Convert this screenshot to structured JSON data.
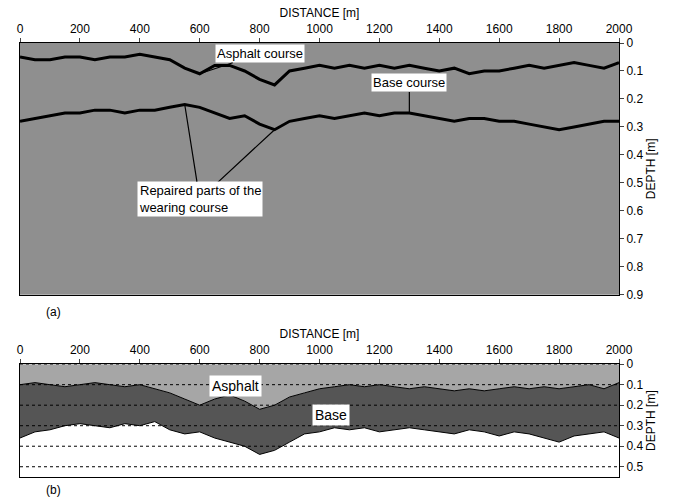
{
  "chart_data": [
    {
      "type": "line",
      "title": "(a)",
      "x_label": "DISTANCE [m]",
      "y_label": "DEPTH [m]",
      "x": [
        0,
        50,
        100,
        150,
        200,
        250,
        300,
        350,
        400,
        450,
        500,
        550,
        600,
        650,
        700,
        750,
        800,
        850,
        900,
        950,
        1000,
        1050,
        1100,
        1150,
        1200,
        1250,
        1300,
        1350,
        1400,
        1450,
        1500,
        1550,
        1600,
        1650,
        1700,
        1750,
        1800,
        1850,
        1900,
        1950,
        2000
      ],
      "xlim": [
        0,
        2000
      ],
      "xticks": [
        0,
        200,
        400,
        600,
        800,
        1000,
        1200,
        1400,
        1600,
        1800,
        2000
      ],
      "ylim": [
        0,
        0.9
      ],
      "yticks": [
        0,
        0.1,
        0.2,
        0.3,
        0.4,
        0.5,
        0.6,
        0.7,
        0.8,
        0.9
      ],
      "series": [
        {
          "name": "Asphalt course",
          "color": "#000000",
          "values": [
            0.05,
            0.06,
            0.06,
            0.05,
            0.05,
            0.06,
            0.05,
            0.05,
            0.04,
            0.05,
            0.06,
            0.09,
            0.11,
            0.08,
            0.08,
            0.1,
            0.13,
            0.15,
            0.1,
            0.09,
            0.08,
            0.09,
            0.08,
            0.09,
            0.08,
            0.09,
            0.08,
            0.09,
            0.1,
            0.09,
            0.11,
            0.1,
            0.1,
            0.09,
            0.08,
            0.09,
            0.08,
            0.07,
            0.08,
            0.09,
            0.07
          ]
        },
        {
          "name": "Base course",
          "color": "#000000",
          "values": [
            0.28,
            0.27,
            0.26,
            0.25,
            0.25,
            0.24,
            0.24,
            0.25,
            0.24,
            0.24,
            0.23,
            0.22,
            0.23,
            0.25,
            0.27,
            0.26,
            0.29,
            0.31,
            0.28,
            0.27,
            0.26,
            0.27,
            0.26,
            0.25,
            0.26,
            0.25,
            0.25,
            0.26,
            0.27,
            0.28,
            0.27,
            0.27,
            0.28,
            0.28,
            0.29,
            0.3,
            0.31,
            0.3,
            0.29,
            0.28,
            0.28
          ]
        }
      ],
      "annotations": [
        "Repaired parts of the wearing course"
      ]
    },
    {
      "type": "area",
      "title": "(b)",
      "x_label": "DISTANCE [m]",
      "y_label": "DEPTH [m]",
      "stacked": true,
      "grid": true,
      "x": [
        0,
        50,
        100,
        150,
        200,
        250,
        300,
        350,
        400,
        450,
        500,
        550,
        600,
        650,
        700,
        750,
        800,
        850,
        900,
        950,
        1000,
        1050,
        1100,
        1150,
        1200,
        1250,
        1300,
        1350,
        1400,
        1450,
        1500,
        1550,
        1600,
        1650,
        1700,
        1750,
        1800,
        1850,
        1900,
        1950,
        2000
      ],
      "xlim": [
        0,
        2000
      ],
      "xticks": [
        0,
        200,
        400,
        600,
        800,
        1000,
        1200,
        1400,
        1600,
        1800,
        2000
      ],
      "ylim": [
        0,
        0.55
      ],
      "yticks": [
        0,
        0.1,
        0.2,
        0.3,
        0.4,
        0.5
      ],
      "series": [
        {
          "name": "Asphalt",
          "color": "#a6a6a6",
          "values": [
            0.1,
            0.09,
            0.1,
            0.11,
            0.1,
            0.09,
            0.1,
            0.11,
            0.1,
            0.12,
            0.14,
            0.17,
            0.2,
            0.17,
            0.15,
            0.18,
            0.22,
            0.2,
            0.16,
            0.14,
            0.12,
            0.11,
            0.1,
            0.11,
            0.1,
            0.11,
            0.12,
            0.11,
            0.12,
            0.13,
            0.12,
            0.13,
            0.12,
            0.11,
            0.12,
            0.11,
            0.12,
            0.11,
            0.1,
            0.12,
            0.09
          ]
        },
        {
          "name": "Base",
          "color": "#555555",
          "values": [
            0.26,
            0.24,
            0.22,
            0.19,
            0.19,
            0.21,
            0.21,
            0.18,
            0.2,
            0.16,
            0.18,
            0.17,
            0.13,
            0.19,
            0.23,
            0.22,
            0.22,
            0.22,
            0.22,
            0.2,
            0.21,
            0.2,
            0.22,
            0.2,
            0.23,
            0.21,
            0.19,
            0.21,
            0.21,
            0.21,
            0.2,
            0.2,
            0.23,
            0.22,
            0.22,
            0.25,
            0.26,
            0.24,
            0.24,
            0.21,
            0.27
          ]
        }
      ]
    }
  ]
}
